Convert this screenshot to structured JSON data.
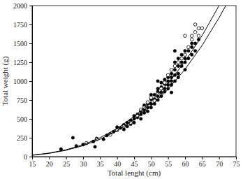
{
  "chart_data": {
    "type": "scatter",
    "x_label": "Total lenght (cm)",
    "y_label": "Total weight (g)",
    "xlim": [
      15,
      75
    ],
    "ylim": [
      0,
      2000
    ],
    "xticks": [
      15,
      20,
      25,
      30,
      35,
      40,
      45,
      50,
      55,
      60,
      65,
      70,
      75
    ],
    "yticks": [
      0,
      250,
      500,
      750,
      1000,
      1250,
      1500,
      1750,
      2000
    ],
    "series": [
      {
        "type": "scatter",
        "marker": "circle",
        "color": "#000000",
        "x": [
          23.5,
          27,
          28,
          30,
          33,
          33.5,
          34,
          36,
          37,
          38,
          39,
          40,
          40,
          41,
          42,
          42,
          43,
          43,
          44,
          44,
          45,
          45,
          45,
          46,
          46,
          47,
          47,
          47,
          48,
          48,
          48,
          49,
          49,
          49,
          50,
          50,
          50,
          50,
          51,
          51,
          51,
          52,
          52,
          52,
          52,
          53,
          53,
          53,
          53,
          54,
          54,
          54,
          54,
          55,
          55,
          55,
          55,
          56,
          56,
          56,
          56,
          57,
          57,
          57,
          57,
          58,
          58,
          58,
          58,
          59,
          59,
          59,
          60,
          60,
          60,
          60,
          61,
          61,
          62,
          62,
          62,
          63,
          63,
          64,
          56,
          52,
          57
        ],
        "values": [
          100,
          250,
          140,
          160,
          200,
          130,
          240,
          230,
          280,
          300,
          330,
          350,
          390,
          380,
          420,
          360,
          450,
          400,
          480,
          430,
          500,
          450,
          540,
          520,
          560,
          560,
          600,
          500,
          620,
          580,
          680,
          650,
          700,
          600,
          700,
          760,
          650,
          820,
          760,
          820,
          700,
          800,
          860,
          900,
          750,
          850,
          920,
          980,
          800,
          900,
          960,
          1020,
          860,
          950,
          1050,
          1000,
          900,
          1000,
          1100,
          1050,
          950,
          1080,
          1150,
          1000,
          1250,
          1100,
          1200,
          1300,
          1050,
          1200,
          1250,
          1350,
          1250,
          1300,
          1400,
          1150,
          1300,
          1400,
          1350,
          1450,
          1500,
          1500,
          1400,
          1550,
          850,
          1000,
          1400
        ]
      },
      {
        "type": "scatter",
        "marker": "open-circle",
        "color": "#000000",
        "x": [
          31,
          34,
          38,
          40,
          42,
          44,
          46,
          47,
          48,
          49,
          50,
          51,
          52,
          53,
          54,
          55,
          56,
          57,
          58,
          59,
          60,
          61,
          62,
          62,
          63,
          64,
          64,
          65,
          63,
          60
        ],
        "values": [
          180,
          230,
          290,
          350,
          400,
          450,
          540,
          620,
          650,
          720,
          780,
          740,
          830,
          900,
          980,
          1080,
          1150,
          1200,
          1250,
          1300,
          1350,
          1450,
          1600,
          1550,
          1650,
          1700,
          1600,
          1700,
          1750,
          1600
        ]
      },
      {
        "type": "line",
        "line_style": "solid",
        "color": "#000000",
        "x": [
          15,
          20,
          25,
          30,
          35,
          40,
          45,
          50,
          55,
          60,
          65,
          70
        ],
        "values": [
          20,
          47,
          91,
          157,
          250,
          373,
          531,
          729,
          970,
          1260,
          1600,
          2000
        ]
      },
      {
        "type": "line",
        "line_style": "solid",
        "color": "#000000",
        "x": [
          15,
          20,
          25,
          30,
          35,
          40,
          45,
          50,
          55,
          60,
          65,
          70,
          72
        ],
        "values": [
          18,
          43,
          84,
          145,
          230,
          343,
          488,
          670,
          892,
          1158,
          1471,
          1838,
          2000
        ]
      }
    ]
  }
}
